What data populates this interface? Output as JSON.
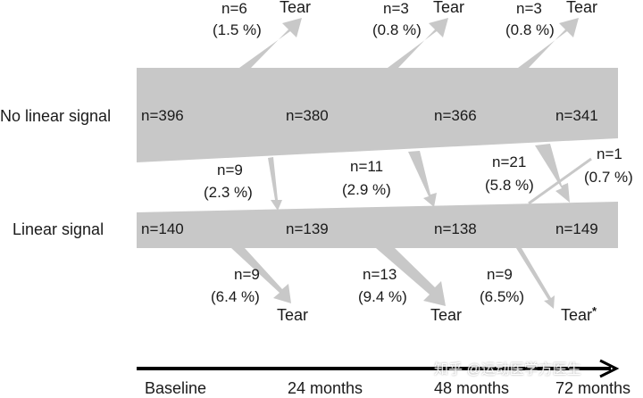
{
  "rows": {
    "no_linear_label": "No linear signal",
    "linear_label": "Linear signal"
  },
  "no_linear_counts": [
    "n=396",
    "n=380",
    "n=366",
    "n=341"
  ],
  "linear_counts": [
    "n=140",
    "n=139",
    "n=138",
    "n=149"
  ],
  "tears_from_no_linear": [
    {
      "n": "n=6",
      "pct": "(1.5 %)",
      "label": "Tear"
    },
    {
      "n": "n=3",
      "pct": "(0.8 %)",
      "label": "Tear"
    },
    {
      "n": "n=3",
      "pct": "(0.8 %)",
      "label": "Tear"
    }
  ],
  "transitions_to_linear": [
    {
      "n": "n=9",
      "pct": "(2.3 %)"
    },
    {
      "n": "n=11",
      "pct": "(2.9 %)"
    },
    {
      "n": "n=21",
      "pct": "(5.8 %)"
    }
  ],
  "reverse_transition": {
    "n": "n=1",
    "pct": "(0.7 %)"
  },
  "tears_from_linear": [
    {
      "n": "n=9",
      "pct": "(6.4 %)",
      "label": "Tear"
    },
    {
      "n": "n=13",
      "pct": "(9.4 %)",
      "label": "Tear"
    },
    {
      "n": "n=9",
      "pct": "(6.5%)",
      "label": "Tear",
      "marker": "*"
    }
  ],
  "timeline": [
    "Baseline",
    "24 months",
    "48 months",
    "72 months"
  ],
  "watermark": "知乎 @运动医学方医生",
  "colors": {
    "band": "#c8c8c8",
    "text": "#1a1a1a",
    "axis": "#000000"
  }
}
